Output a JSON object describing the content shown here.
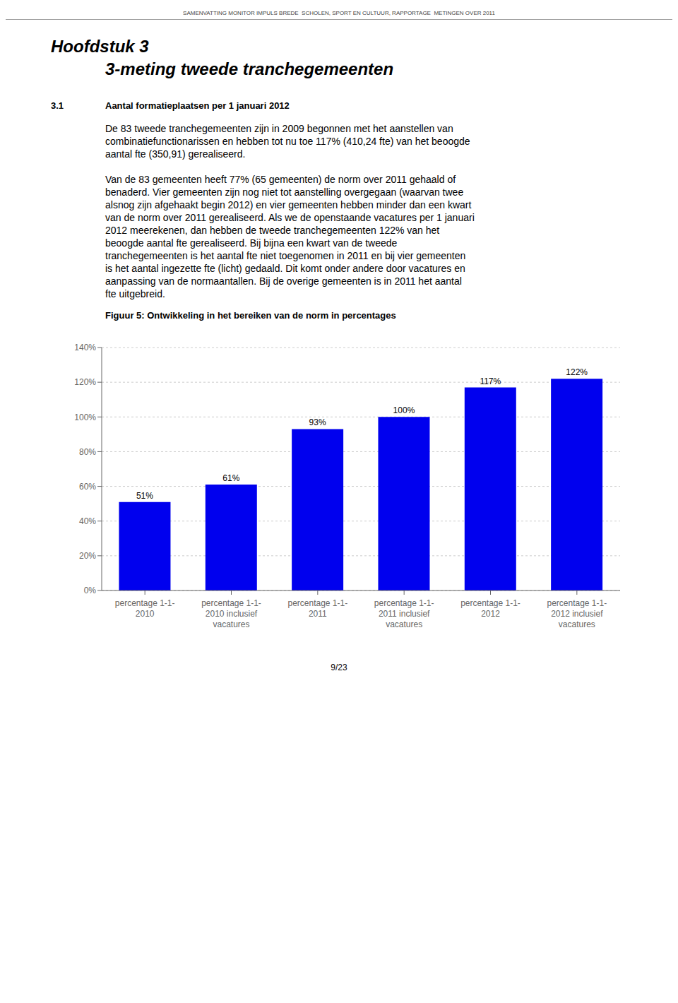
{
  "chart_data": {
    "type": "bar",
    "title": "Figuur 5: Ontwikkeling in het bereiken van de norm in percentages",
    "annotations": [
      "SAMENVATTING MONITOR IMPULS BREDE  SCHOLEN, SPORT EN CULTUUR, RAPPORTAGE  METINGEN OVER 2011",
      "Hoofdstuk 3",
      "3-meting tweede tranchegemeenten",
      "3.1",
      "Aantal formatieplaatsen per 1 januari 2012",
      "De 83 tweede tranchegemeenten zijn in 2009 begonnen met het aanstellen van",
      "combinatiefunctionarissen en hebben tot nu toe 117% (410,24 fte) van het beoogde",
      "aantal fte (350,91) gerealiseerd.",
      "Van de 83 gemeenten heeft 77% (65 gemeenten) de norm over 2011 gehaald of",
      "benaderd. Vier gemeenten zijn nog niet tot aanstelling overgegaan (waarvan twee",
      "alsnog zijn afgehaakt begin 2012) en vier gemeenten hebben minder dan een kwart",
      "van de norm over 2011 gerealiseerd. Als we de openstaande vacatures per 1 januari",
      "2012 meerekenen, dan hebben de tweede tranchegemeenten 122% van het",
      "beoogde aantal fte gerealiseerd. Bij bijna een kwart van de tweede",
      "tranchegemeenten is het aantal fte niet toegenomen in 2011 en bij vier gemeenten",
      "is het aantal ingezette fte (licht) gedaald. Dit komt onder andere door vacatures en",
      "aanpassing van de normaantallen. Bij de overige gemeenten is in 2011 het aantal",
      "fte uitgebreid.",
      "9/23"
    ],
    "categories": [
      "percentage 1-1-\n2010",
      "percentage 1-1-\n2010 inclusief\nvacatures",
      "percentage 1-1-\n2011",
      "percentage 1-1-\n2011 inclusief\nvacatures",
      "percentage 1-1-\n2012",
      "percentage 1-1-\n2012 inclusief\nvacatures"
    ],
    "values": [
      51,
      61,
      93,
      100,
      117,
      122
    ],
    "value_labels": [
      "51%",
      "61%",
      "93%",
      "100%",
      "117%",
      "122%"
    ],
    "data_labels": true,
    "color": "#0000EE",
    "ylim": [
      0,
      140
    ],
    "yticks": [
      {
        "value": 0,
        "label": "0%"
      },
      {
        "value": 20,
        "label": "20%"
      },
      {
        "value": 40,
        "label": "40%"
      },
      {
        "value": 60,
        "label": "60%"
      },
      {
        "value": 80,
        "label": "80%"
      },
      {
        "value": 100,
        "label": "100%"
      },
      {
        "value": 120,
        "label": "120%"
      },
      {
        "value": 140,
        "label": "140%"
      }
    ],
    "grid": true
  }
}
